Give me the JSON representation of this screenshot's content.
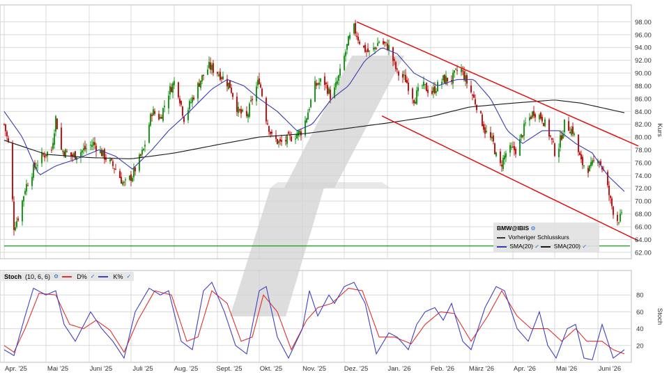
{
  "chart_data": [
    {
      "type": "candlestick",
      "symbol": "BMW@IBIS",
      "ylabel": "Kurs",
      "ylim": [
        61,
        100
      ],
      "y_ticks": [
        "62.00",
        "64.00",
        "66.00",
        "68.00",
        "70.00",
        "72.00",
        "74.00",
        "76.00",
        "78.00",
        "80.00",
        "82.00",
        "84.00",
        "86.00",
        "88.00",
        "90.00",
        "92.00",
        "94.00",
        "96.00",
        "98.00"
      ],
      "x_labels": [
        "Apr. '25",
        "Mai '25",
        "Juni '25",
        "Juli '25",
        "Aug. '25",
        "Sept. '25",
        "Okt. '25",
        "Nov. '25",
        "Dez. '25",
        "Jan. '26",
        "Feb. '26",
        "März '26",
        "Apr. '26",
        "Mai '26",
        "Juni '26"
      ],
      "grid": true,
      "close_anchors": [
        [
          "2025-04-01",
          82
        ],
        [
          "2025-04-05",
          78
        ],
        [
          "2025-04-08",
          66
        ],
        [
          "2025-04-12",
          68
        ],
        [
          "2025-04-16",
          72
        ],
        [
          "2025-04-22",
          75
        ],
        [
          "2025-04-28",
          77
        ],
        [
          "2025-05-05",
          78
        ],
        [
          "2025-05-08",
          83
        ],
        [
          "2025-05-12",
          78
        ],
        [
          "2025-05-20",
          77
        ],
        [
          "2025-05-28",
          78
        ],
        [
          "2025-06-04",
          79
        ],
        [
          "2025-06-12",
          77
        ],
        [
          "2025-06-20",
          75
        ],
        [
          "2025-06-26",
          72.5
        ],
        [
          "2025-07-02",
          74
        ],
        [
          "2025-07-10",
          78
        ],
        [
          "2025-07-16",
          84
        ],
        [
          "2025-07-22",
          83
        ],
        [
          "2025-07-28",
          87
        ],
        [
          "2025-08-02",
          89
        ],
        [
          "2025-08-08",
          83
        ],
        [
          "2025-08-14",
          86
        ],
        [
          "2025-08-20",
          89
        ],
        [
          "2025-08-26",
          91
        ],
        [
          "2025-09-02",
          90
        ],
        [
          "2025-09-06",
          89
        ],
        [
          "2025-09-10",
          88
        ],
        [
          "2025-09-16",
          84
        ],
        [
          "2025-09-22",
          83
        ],
        [
          "2025-09-26",
          86
        ],
        [
          "2025-10-01",
          89
        ],
        [
          "2025-10-06",
          83
        ],
        [
          "2025-10-10",
          80
        ],
        [
          "2025-10-16",
          79
        ],
        [
          "2025-10-24",
          80
        ],
        [
          "2025-11-01",
          81
        ],
        [
          "2025-11-05",
          84
        ],
        [
          "2025-11-10",
          88
        ],
        [
          "2025-11-16",
          89
        ],
        [
          "2025-11-22",
          86
        ],
        [
          "2025-11-28",
          90
        ],
        [
          "2025-12-04",
          95
        ],
        [
          "2025-12-08",
          97
        ],
        [
          "2025-12-14",
          94
        ],
        [
          "2025-12-20",
          93
        ],
        [
          "2025-12-26",
          95
        ],
        [
          "2026-01-02",
          94
        ],
        [
          "2026-01-08",
          90
        ],
        [
          "2026-01-14",
          89
        ],
        [
          "2026-01-20",
          86
        ],
        [
          "2026-01-26",
          88
        ],
        [
          "2026-02-02",
          87
        ],
        [
          "2026-02-10",
          89
        ],
        [
          "2026-02-16",
          89
        ],
        [
          "2026-02-22",
          91
        ],
        [
          "2026-02-28",
          88
        ],
        [
          "2026-03-06",
          85
        ],
        [
          "2026-03-12",
          81
        ],
        [
          "2026-03-18",
          79
        ],
        [
          "2026-03-22",
          75
        ],
        [
          "2026-03-28",
          78
        ],
        [
          "2026-04-04",
          78
        ],
        [
          "2026-04-10",
          82
        ],
        [
          "2026-04-16",
          84
        ],
        [
          "2026-04-22",
          83
        ],
        [
          "2026-04-28",
          80
        ],
        [
          "2026-05-02",
          77
        ],
        [
          "2026-05-08",
          82
        ],
        [
          "2026-05-14",
          81
        ],
        [
          "2026-05-20",
          76
        ],
        [
          "2026-05-26",
          75
        ],
        [
          "2026-06-01",
          77
        ],
        [
          "2026-06-06",
          74
        ],
        [
          "2026-06-10",
          70
        ],
        [
          "2026-06-14",
          67
        ],
        [
          "2026-06-18",
          67.5
        ]
      ],
      "sma20_anchors": [
        [
          "2025-04-01",
          84
        ],
        [
          "2025-04-14",
          80
        ],
        [
          "2025-04-26",
          74
        ],
        [
          "2025-05-08",
          75.5
        ],
        [
          "2025-05-22",
          76.5
        ],
        [
          "2025-06-08",
          78
        ],
        [
          "2025-06-20",
          77
        ],
        [
          "2025-07-02",
          75
        ],
        [
          "2025-07-16",
          78
        ],
        [
          "2025-07-28",
          81
        ],
        [
          "2025-08-12",
          84
        ],
        [
          "2025-08-28",
          87.5
        ],
        [
          "2025-09-08",
          89
        ],
        [
          "2025-09-20",
          88
        ],
        [
          "2025-10-01",
          86
        ],
        [
          "2025-10-14",
          84
        ],
        [
          "2025-10-28",
          81
        ],
        [
          "2025-11-08",
          82
        ],
        [
          "2025-11-22",
          86
        ],
        [
          "2025-12-04",
          88
        ],
        [
          "2025-12-16",
          92
        ],
        [
          "2025-12-28",
          94
        ],
        [
          "2026-01-08",
          93
        ],
        [
          "2026-01-20",
          90
        ],
        [
          "2026-02-06",
          88
        ],
        [
          "2026-02-20",
          89
        ],
        [
          "2026-03-04",
          89
        ],
        [
          "2026-03-16",
          86
        ],
        [
          "2026-03-28",
          81
        ],
        [
          "2026-04-08",
          79
        ],
        [
          "2026-04-22",
          81
        ],
        [
          "2026-05-04",
          81
        ],
        [
          "2026-05-16",
          79
        ],
        [
          "2026-05-28",
          77.5
        ],
        [
          "2026-06-08",
          74
        ],
        [
          "2026-06-20",
          71.5
        ]
      ],
      "sma200_anchors": [
        [
          "2025-04-01",
          79.5
        ],
        [
          "2025-05-01",
          77.3
        ],
        [
          "2025-06-01",
          76.8
        ],
        [
          "2025-07-01",
          76.6
        ],
        [
          "2025-08-01",
          77.5
        ],
        [
          "2025-09-01",
          78.8
        ],
        [
          "2025-10-01",
          80
        ],
        [
          "2025-11-01",
          80.5
        ],
        [
          "2025-12-01",
          81.3
        ],
        [
          "2026-01-01",
          82.2
        ],
        [
          "2026-02-01",
          83.2
        ],
        [
          "2026-03-01",
          84.7
        ],
        [
          "2026-04-01",
          85.3
        ],
        [
          "2026-05-01",
          85.8
        ],
        [
          "2026-05-20",
          85.3
        ],
        [
          "2026-06-20",
          83.8
        ]
      ],
      "support_line": {
        "y": 63.0,
        "x": [
          "2025-04-01",
          "2026-06-24"
        ]
      },
      "trend_upper": [
        [
          "2025-12-10",
          98.0
        ],
        [
          "2026-06-30",
          78.6
        ]
      ],
      "trend_lower": [
        [
          "2025-12-28",
          83.3
        ],
        [
          "2026-06-30",
          63.8
        ]
      ]
    },
    {
      "type": "line",
      "indicator": "Stoch",
      "params": "(10, 6, 6)",
      "ylabel": "Stoch",
      "ylim": [
        0,
        95
      ],
      "y_ticks": [
        "20",
        "40",
        "60",
        "80"
      ],
      "k_anchors": [
        [
          "2025-04-01",
          15
        ],
        [
          "2025-04-08",
          8
        ],
        [
          "2025-04-16",
          55
        ],
        [
          "2025-04-22",
          88
        ],
        [
          "2025-05-01",
          80
        ],
        [
          "2025-05-08",
          85
        ],
        [
          "2025-05-14",
          45
        ],
        [
          "2025-05-22",
          25
        ],
        [
          "2025-06-02",
          60
        ],
        [
          "2025-06-10",
          40
        ],
        [
          "2025-06-18",
          25
        ],
        [
          "2025-06-26",
          5
        ],
        [
          "2025-07-04",
          60
        ],
        [
          "2025-07-14",
          88
        ],
        [
          "2025-07-22",
          80
        ],
        [
          "2025-07-28",
          85
        ],
        [
          "2025-08-06",
          25
        ],
        [
          "2025-08-14",
          15
        ],
        [
          "2025-08-22",
          85
        ],
        [
          "2025-08-28",
          95
        ],
        [
          "2025-09-06",
          60
        ],
        [
          "2025-09-14",
          20
        ],
        [
          "2025-09-22",
          10
        ],
        [
          "2025-10-01",
          85
        ],
        [
          "2025-10-06",
          90
        ],
        [
          "2025-10-14",
          30
        ],
        [
          "2025-10-22",
          5
        ],
        [
          "2025-11-01",
          40
        ],
        [
          "2025-11-06",
          85
        ],
        [
          "2025-11-12",
          55
        ],
        [
          "2025-11-20",
          80
        ],
        [
          "2025-11-24",
          70
        ],
        [
          "2025-12-01",
          90
        ],
        [
          "2025-12-08",
          95
        ],
        [
          "2025-12-16",
          70
        ],
        [
          "2025-12-24",
          10
        ],
        [
          "2026-01-02",
          35
        ],
        [
          "2026-01-08",
          30
        ],
        [
          "2026-01-16",
          15
        ],
        [
          "2026-01-22",
          45
        ],
        [
          "2026-01-28",
          60
        ],
        [
          "2026-02-04",
          65
        ],
        [
          "2026-02-10",
          50
        ],
        [
          "2026-02-16",
          70
        ],
        [
          "2026-02-24",
          25
        ],
        [
          "2026-03-02",
          15
        ],
        [
          "2026-03-12",
          65
        ],
        [
          "2026-03-20",
          90
        ],
        [
          "2026-03-26",
          85
        ],
        [
          "2026-04-04",
          40
        ],
        [
          "2026-04-12",
          25
        ],
        [
          "2026-04-20",
          60
        ],
        [
          "2026-04-26",
          20
        ],
        [
          "2026-05-02",
          5
        ],
        [
          "2026-05-10",
          40
        ],
        [
          "2026-05-16",
          45
        ],
        [
          "2026-05-22",
          5
        ],
        [
          "2026-05-28",
          3
        ],
        [
          "2026-06-04",
          45
        ],
        [
          "2026-06-12",
          5
        ],
        [
          "2026-06-20",
          15
        ]
      ],
      "d_anchors": [
        [
          "2025-04-01",
          20
        ],
        [
          "2025-04-08",
          12
        ],
        [
          "2025-04-16",
          40
        ],
        [
          "2025-04-26",
          82
        ],
        [
          "2025-05-08",
          80
        ],
        [
          "2025-05-18",
          45
        ],
        [
          "2025-05-28",
          40
        ],
        [
          "2025-06-06",
          50
        ],
        [
          "2025-06-16",
          38
        ],
        [
          "2025-06-26",
          12
        ],
        [
          "2025-07-06",
          50
        ],
        [
          "2025-07-18",
          85
        ],
        [
          "2025-07-30",
          80
        ],
        [
          "2025-08-10",
          25
        ],
        [
          "2025-08-18",
          30
        ],
        [
          "2025-08-28",
          85
        ],
        [
          "2025-09-08",
          70
        ],
        [
          "2025-09-18",
          25
        ],
        [
          "2025-09-26",
          30
        ],
        [
          "2025-10-04",
          80
        ],
        [
          "2025-10-14",
          60
        ],
        [
          "2025-10-24",
          15
        ],
        [
          "2025-11-04",
          50
        ],
        [
          "2025-11-12",
          65
        ],
        [
          "2025-11-22",
          70
        ],
        [
          "2025-12-04",
          88
        ],
        [
          "2025-12-14",
          85
        ],
        [
          "2025-12-26",
          30
        ],
        [
          "2026-01-06",
          30
        ],
        [
          "2026-01-18",
          22
        ],
        [
          "2026-01-28",
          45
        ],
        [
          "2026-02-08",
          60
        ],
        [
          "2026-02-18",
          58
        ],
        [
          "2026-03-02",
          25
        ],
        [
          "2026-03-14",
          55
        ],
        [
          "2026-03-24",
          85
        ],
        [
          "2026-04-04",
          55
        ],
        [
          "2026-04-14",
          40
        ],
        [
          "2026-04-26",
          40
        ],
        [
          "2026-05-06",
          25
        ],
        [
          "2026-05-16",
          40
        ],
        [
          "2026-05-24",
          25
        ],
        [
          "2026-06-04",
          25
        ],
        [
          "2026-06-12",
          15
        ],
        [
          "2026-06-20",
          10
        ]
      ]
    }
  ],
  "labels": {
    "stoch_title": "Stoch",
    "stoch_params": "(10, 6, 6)",
    "d_label": "D%",
    "k_label": "K%",
    "legend_symbol": "BMW@IBIS",
    "legend_prev_close": "Vorheriger Schlusskurs",
    "legend_sma20": "SMA(20)",
    "legend_sma200": "SMA(200)"
  },
  "colors": {
    "up": "#1a9a1a",
    "down": "#c81414",
    "sma20": "#3a3ab0",
    "sma200": "#1a1a1a",
    "trend": "#e01010",
    "support": "#2fa52f",
    "d_line": "#e03030",
    "k_line": "#4040c0",
    "grid": "#d8d8d8",
    "watermark": "#d2d2d2"
  }
}
